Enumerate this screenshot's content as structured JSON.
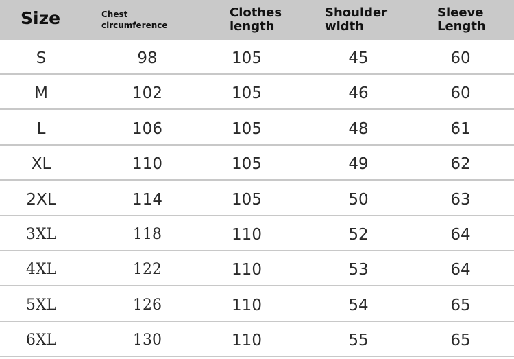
{
  "headers": {
    "size": "Size",
    "chest_line1": "Chest",
    "chest_line2": "circumference",
    "clothes_line1": "Clothes",
    "clothes_line2": "length",
    "shoulder_line1": "Shoulder",
    "shoulder_line2": "width",
    "sleeve_line1": "Sleeve",
    "sleeve_line2": "Length"
  },
  "rows": [
    [
      "S",
      "98",
      "105",
      "45",
      "60"
    ],
    [
      "M",
      "102",
      "105",
      "46",
      "60"
    ],
    [
      "L",
      "106",
      "105",
      "48",
      "61"
    ],
    [
      "XL",
      "110",
      "105",
      "49",
      "62"
    ],
    [
      "2XL",
      "114",
      "105",
      "50",
      "63"
    ],
    [
      "3XL",
      "118",
      "110",
      "52",
      "64"
    ],
    [
      "4XL",
      "122",
      "110",
      "53",
      "64"
    ],
    [
      "5XL",
      "126",
      "110",
      "54",
      "65"
    ],
    [
      "6XL",
      "130",
      "110",
      "55",
      "65"
    ]
  ]
}
